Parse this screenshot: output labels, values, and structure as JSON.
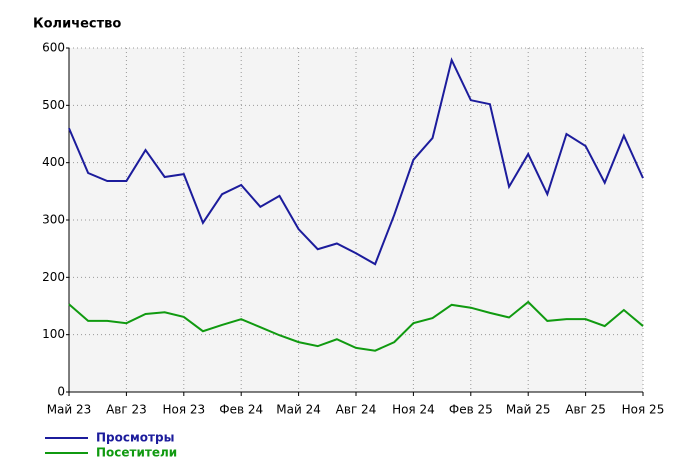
{
  "chart_data": {
    "type": "line",
    "y_axis_title": "Количество",
    "categories": [
      "Май 23",
      null,
      null,
      "Авг 23",
      null,
      null,
      "Ноя 23",
      null,
      null,
      "Фев 24",
      null,
      null,
      "Май 24",
      null,
      null,
      "Авг 24",
      null,
      null,
      "Ноя 24",
      null,
      null,
      "Фев 25",
      null,
      null,
      "Май 25",
      null,
      null,
      "Авг 25",
      null,
      null,
      "Ноя 25"
    ],
    "series": [
      {
        "name": "Просмотры",
        "color": "#1c1c9c",
        "values": [
          460,
          382,
          368,
          368,
          422,
          375,
          380,
          295,
          345,
          361,
          323,
          342,
          284,
          249,
          259,
          242,
          223,
          309,
          405,
          443,
          579,
          509,
          502,
          358,
          415,
          345,
          450,
          429,
          365,
          447,
          373
        ]
      },
      {
        "name": "Посетители",
        "color": "#109a10",
        "values": [
          153,
          124,
          124,
          120,
          136,
          139,
          131,
          106,
          117,
          127,
          113,
          99,
          87,
          80,
          92,
          77,
          72,
          87,
          120,
          129,
          152,
          147,
          138,
          130,
          157,
          124,
          127,
          127,
          115,
          143,
          115
        ]
      }
    ],
    "ylim": [
      0,
      600
    ],
    "yticks": [
      0,
      100,
      200,
      300,
      400,
      500,
      600
    ],
    "grid": true
  }
}
